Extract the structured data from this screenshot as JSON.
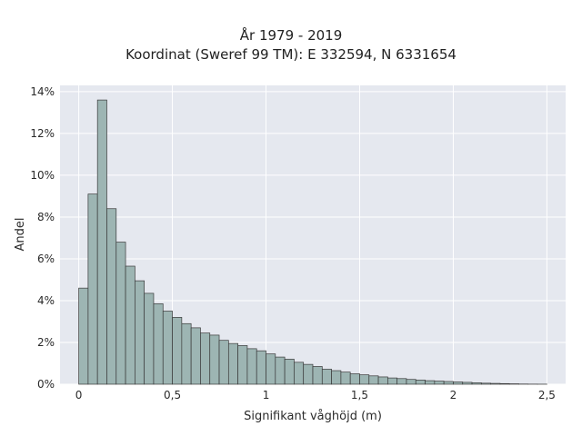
{
  "chart_data": {
    "type": "bar",
    "title": "År 1979 - 2019",
    "subtitle": "Koordinat (Sweref 99 TM): E 332594, N 6331654",
    "xlabel": "Signifikant våghöjd (m)",
    "ylabel": "Andel",
    "xlim": [
      -0.1,
      2.6
    ],
    "ylim": [
      0,
      14.3
    ],
    "x_ticks": [
      0,
      0.5,
      1,
      1.5,
      2,
      2.5
    ],
    "x_tick_labels": [
      "0",
      "0,5",
      "1",
      "1,5",
      "2",
      "2,5"
    ],
    "y_ticks": [
      0,
      2,
      4,
      6,
      8,
      10,
      12,
      14
    ],
    "y_tick_labels": [
      "0%",
      "2%",
      "4%",
      "6%",
      "8%",
      "10%",
      "12%",
      "14%"
    ],
    "bin_width": 0.05,
    "bin_start": 0,
    "values": [
      4.6,
      9.1,
      13.6,
      8.4,
      6.8,
      5.65,
      4.95,
      4.35,
      3.85,
      3.5,
      3.2,
      2.9,
      2.7,
      2.45,
      2.35,
      2.1,
      1.95,
      1.85,
      1.7,
      1.6,
      1.45,
      1.3,
      1.2,
      1.05,
      0.95,
      0.85,
      0.72,
      0.65,
      0.58,
      0.5,
      0.45,
      0.4,
      0.35,
      0.3,
      0.27,
      0.23,
      0.2,
      0.17,
      0.15,
      0.13,
      0.11,
      0.09,
      0.07,
      0.05,
      0.04,
      0.03,
      0.02,
      0.01,
      0.005,
      0.003
    ],
    "grid": true,
    "bar_color": "#9db5b3",
    "bar_edge_color": "#3a3a3a",
    "plot_bg": "#e5e8ef"
  }
}
